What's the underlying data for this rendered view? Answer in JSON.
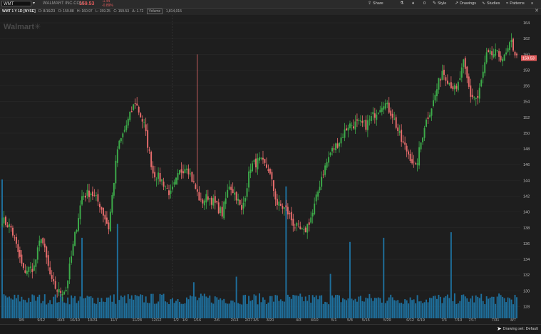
{
  "toolbar": {
    "symbol": "WMT",
    "company": "WALMART INC.COM",
    "price": "159.53",
    "change_abs": "-1.44",
    "change_pct": "-0.89%",
    "share": "Share",
    "style": "Style",
    "drawings": "Drawings",
    "studies": "Studies",
    "patterns": "Patterns",
    "alerts_count": "0"
  },
  "info_bar": {
    "chart_label": "WMT 1 Y 1D [NYSE]",
    "date": "D: 8/16/23",
    "open": "O: 159.88",
    "high": "H: 160.97",
    "low": "L: 159.25",
    "close": "C: 159.53",
    "chg": "Δ: 1.72",
    "volume_label": "Volume",
    "volume": "1,814,015"
  },
  "watermark": "Walmart",
  "footer": {
    "drawing_set": "Drawing set: Default"
  },
  "colors": {
    "up": "#3dac4a",
    "down": "#e96d6d",
    "volume": "#1e6f9c",
    "last_price_tag": "#e05b5b"
  },
  "chart_data": {
    "type": "candlestick",
    "title": "WMT 1 Y 1D [NYSE]",
    "y_ticks": [
      128,
      130,
      132,
      134,
      136,
      138,
      140,
      142,
      144,
      146,
      148,
      150,
      152,
      154,
      156,
      158,
      160,
      162,
      164
    ],
    "ylim": [
      126.5,
      165
    ],
    "x_ticks": [
      "9/5",
      "9/12",
      "10/3",
      "10/10",
      "10/31",
      "11/7",
      "11/28",
      "12/12",
      "1/2",
      "1/9",
      "1/16",
      "2/6",
      "2/13",
      "2/27",
      "3/6",
      "3/20",
      "4/3",
      "4/10",
      "5/1",
      "5/8",
      "5/15",
      "5/29",
      "6/12",
      "6/19",
      "7/3",
      "7/10",
      "7/17",
      "7/31",
      "8/7"
    ],
    "last_price": "159.53",
    "grid": true,
    "anchors": [
      [
        0,
        139
      ],
      [
        5,
        138
      ],
      [
        12,
        132.5
      ],
      [
        18,
        133
      ],
      [
        22,
        137
      ],
      [
        28,
        131
      ],
      [
        32,
        129.8
      ],
      [
        36,
        130.2
      ],
      [
        41,
        137
      ],
      [
        45,
        142
      ],
      [
        50,
        142.5
      ],
      [
        55,
        141
      ],
      [
        60,
        138
      ],
      [
        65,
        148
      ],
      [
        70,
        151
      ],
      [
        75,
        154
      ],
      [
        80,
        151
      ],
      [
        85,
        145
      ],
      [
        90,
        144
      ],
      [
        95,
        142.2
      ],
      [
        100,
        145
      ],
      [
        104,
        146
      ],
      [
        108,
        143.5
      ],
      [
        112,
        141.2
      ],
      [
        116,
        142
      ],
      [
        120,
        141
      ],
      [
        124,
        139.8
      ],
      [
        128,
        143.5
      ],
      [
        132,
        142
      ],
      [
        135,
        140
      ],
      [
        140,
        145.8
      ],
      [
        145,
        146.5
      ],
      [
        150,
        145.5
      ],
      [
        155,
        141
      ],
      [
        160,
        140.3
      ],
      [
        165,
        138.2
      ],
      [
        170,
        137.3
      ],
      [
        175,
        139.8
      ],
      [
        180,
        144.5
      ],
      [
        185,
        147.5
      ],
      [
        190,
        149
      ],
      [
        195,
        151
      ],
      [
        200,
        151.2
      ],
      [
        205,
        151
      ],
      [
        210,
        152.5
      ],
      [
        215,
        154
      ],
      [
        220,
        152.3
      ],
      [
        225,
        149
      ],
      [
        230,
        147
      ],
      [
        233,
        145.5
      ],
      [
        238,
        151
      ],
      [
        243,
        154
      ],
      [
        248,
        158
      ],
      [
        252,
        156.5
      ],
      [
        256,
        155.3
      ],
      [
        260,
        158.8
      ],
      [
        264,
        154.8
      ],
      [
        268,
        154.4
      ],
      [
        273,
        159.8
      ],
      [
        278,
        160.1
      ],
      [
        283,
        159.5
      ],
      [
        287,
        161.5
      ],
      [
        290,
        159.53
      ]
    ],
    "spike": {
      "index": 110,
      "high": 160
    },
    "volume_note": "relative daily volume bars",
    "volume_peaks": {
      "0": 1.0,
      "45": 0.58,
      "65": 0.68,
      "108": 0.26,
      "132": 0.3,
      "160": 0.95,
      "185": 0.32,
      "196": 0.55,
      "215": 0.58,
      "253": 0.62
    }
  }
}
